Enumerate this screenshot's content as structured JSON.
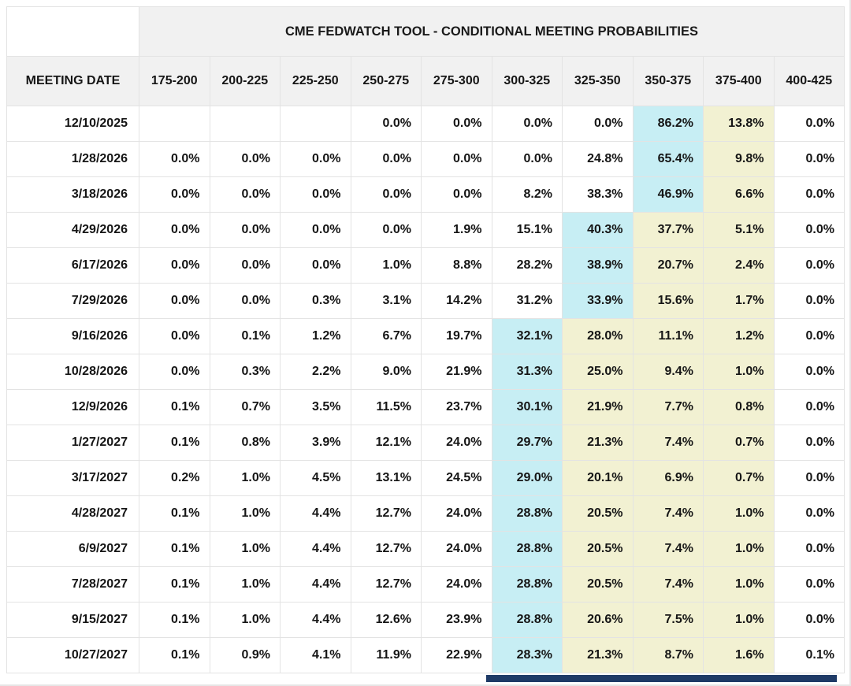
{
  "title": "CME FEDWATCH TOOL - CONDITIONAL MEETING PROBABILITIES",
  "columns": [
    "MEETING DATE",
    "175-200",
    "200-225",
    "225-250",
    "250-275",
    "275-300",
    "300-325",
    "325-350",
    "350-375",
    "375-400",
    "400-425"
  ],
  "rows": [
    {
      "date": "12/10/2025",
      "values": [
        "",
        "",
        "",
        "0.0%",
        "0.0%",
        "0.0%",
        "0.0%",
        "86.2%",
        "13.8%",
        "0.0%"
      ],
      "mode_col": 7,
      "tail_cols": [
        8
      ]
    },
    {
      "date": "1/28/2026",
      "values": [
        "0.0%",
        "0.0%",
        "0.0%",
        "0.0%",
        "0.0%",
        "0.0%",
        "24.8%",
        "65.4%",
        "9.8%",
        "0.0%"
      ],
      "mode_col": 7,
      "tail_cols": [
        8
      ]
    },
    {
      "date": "3/18/2026",
      "values": [
        "0.0%",
        "0.0%",
        "0.0%",
        "0.0%",
        "0.0%",
        "8.2%",
        "38.3%",
        "46.9%",
        "6.6%",
        "0.0%"
      ],
      "mode_col": 7,
      "tail_cols": [
        8
      ]
    },
    {
      "date": "4/29/2026",
      "values": [
        "0.0%",
        "0.0%",
        "0.0%",
        "0.0%",
        "1.9%",
        "15.1%",
        "40.3%",
        "37.7%",
        "5.1%",
        "0.0%"
      ],
      "mode_col": 6,
      "tail_cols": [
        7,
        8
      ]
    },
    {
      "date": "6/17/2026",
      "values": [
        "0.0%",
        "0.0%",
        "0.0%",
        "1.0%",
        "8.8%",
        "28.2%",
        "38.9%",
        "20.7%",
        "2.4%",
        "0.0%"
      ],
      "mode_col": 6,
      "tail_cols": [
        7,
        8
      ]
    },
    {
      "date": "7/29/2026",
      "values": [
        "0.0%",
        "0.0%",
        "0.3%",
        "3.1%",
        "14.2%",
        "31.2%",
        "33.9%",
        "15.6%",
        "1.7%",
        "0.0%"
      ],
      "mode_col": 6,
      "tail_cols": [
        7,
        8
      ]
    },
    {
      "date": "9/16/2026",
      "values": [
        "0.0%",
        "0.1%",
        "1.2%",
        "6.7%",
        "19.7%",
        "32.1%",
        "28.0%",
        "11.1%",
        "1.2%",
        "0.0%"
      ],
      "mode_col": 5,
      "tail_cols": [
        6,
        7,
        8
      ]
    },
    {
      "date": "10/28/2026",
      "values": [
        "0.0%",
        "0.3%",
        "2.2%",
        "9.0%",
        "21.9%",
        "31.3%",
        "25.0%",
        "9.4%",
        "1.0%",
        "0.0%"
      ],
      "mode_col": 5,
      "tail_cols": [
        6,
        7,
        8
      ]
    },
    {
      "date": "12/9/2026",
      "values": [
        "0.1%",
        "0.7%",
        "3.5%",
        "11.5%",
        "23.7%",
        "30.1%",
        "21.9%",
        "7.7%",
        "0.8%",
        "0.0%"
      ],
      "mode_col": 5,
      "tail_cols": [
        6,
        7,
        8
      ]
    },
    {
      "date": "1/27/2027",
      "values": [
        "0.1%",
        "0.8%",
        "3.9%",
        "12.1%",
        "24.0%",
        "29.7%",
        "21.3%",
        "7.4%",
        "0.7%",
        "0.0%"
      ],
      "mode_col": 5,
      "tail_cols": [
        6,
        7,
        8
      ]
    },
    {
      "date": "3/17/2027",
      "values": [
        "0.2%",
        "1.0%",
        "4.5%",
        "13.1%",
        "24.5%",
        "29.0%",
        "20.1%",
        "6.9%",
        "0.7%",
        "0.0%"
      ],
      "mode_col": 5,
      "tail_cols": [
        6,
        7,
        8
      ]
    },
    {
      "date": "4/28/2027",
      "values": [
        "0.1%",
        "1.0%",
        "4.4%",
        "12.7%",
        "24.0%",
        "28.8%",
        "20.5%",
        "7.4%",
        "1.0%",
        "0.0%"
      ],
      "mode_col": 5,
      "tail_cols": [
        6,
        7,
        8
      ]
    },
    {
      "date": "6/9/2027",
      "values": [
        "0.1%",
        "1.0%",
        "4.4%",
        "12.7%",
        "24.0%",
        "28.8%",
        "20.5%",
        "7.4%",
        "1.0%",
        "0.0%"
      ],
      "mode_col": 5,
      "tail_cols": [
        6,
        7,
        8
      ]
    },
    {
      "date": "7/28/2027",
      "values": [
        "0.1%",
        "1.0%",
        "4.4%",
        "12.7%",
        "24.0%",
        "28.8%",
        "20.5%",
        "7.4%",
        "1.0%",
        "0.0%"
      ],
      "mode_col": 5,
      "tail_cols": [
        6,
        7,
        8
      ]
    },
    {
      "date": "9/15/2027",
      "values": [
        "0.1%",
        "1.0%",
        "4.4%",
        "12.6%",
        "23.9%",
        "28.8%",
        "20.6%",
        "7.5%",
        "1.0%",
        "0.0%"
      ],
      "mode_col": 5,
      "tail_cols": [
        6,
        7,
        8
      ]
    },
    {
      "date": "10/27/2027",
      "values": [
        "0.1%",
        "0.9%",
        "4.1%",
        "11.9%",
        "22.9%",
        "28.3%",
        "21.3%",
        "8.7%",
        "1.6%",
        "0.1%"
      ],
      "mode_col": 5,
      "tail_cols": [
        6,
        7,
        8
      ]
    }
  ],
  "colors": {
    "mode_highlight": "#c7eef4",
    "tail_highlight": "#f2f1d2",
    "header_bg": "#f1f1f1",
    "bottom_bar": "#1e3a66"
  }
}
